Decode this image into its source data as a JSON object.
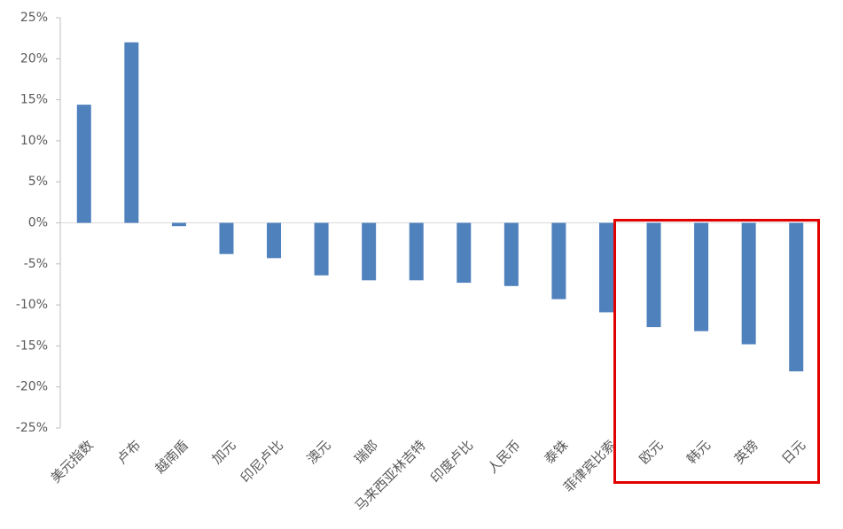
{
  "chart_data": {
    "type": "bar",
    "categories": [
      "美元指数",
      "卢布",
      "越南盾",
      "加元",
      "印尼卢比",
      "澳元",
      "瑞郎",
      "马来西亚林吉特",
      "印度卢比",
      "人民币",
      "泰铢",
      "菲律宾比索",
      "欧元",
      "韩元",
      "英镑",
      "日元"
    ],
    "values": [
      14.4,
      22.0,
      -0.4,
      -3.8,
      -4.3,
      -6.4,
      -7.0,
      -7.0,
      -7.3,
      -7.7,
      -9.3,
      -10.9,
      -12.7,
      -13.2,
      -14.8,
      -18.1
    ],
    "color": "#4f81bd",
    "ylim": [
      -25,
      25
    ],
    "yticks": [
      {
        "value": -25,
        "label": "-25%"
      },
      {
        "value": -20,
        "label": "-20%"
      },
      {
        "value": -15,
        "label": "-15%"
      },
      {
        "value": -10,
        "label": "-10%"
      },
      {
        "value": -5,
        "label": "-5%"
      },
      {
        "value": 0,
        "label": "0%"
      },
      {
        "value": 5,
        "label": "5%"
      },
      {
        "value": 10,
        "label": "10%"
      },
      {
        "value": 15,
        "label": "15%"
      },
      {
        "value": 20,
        "label": "20%"
      },
      {
        "value": 25,
        "label": "25%"
      }
    ],
    "grid": false
  }
}
